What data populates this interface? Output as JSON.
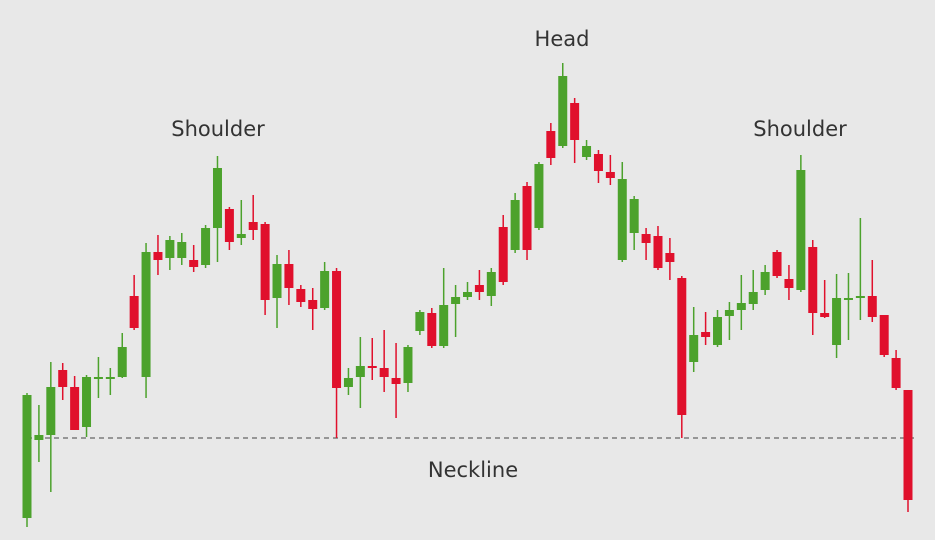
{
  "chart_data": {
    "type": "candlestick",
    "open": [
      22,
      100,
      105,
      170,
      153,
      113,
      161,
      161,
      163,
      244,
      163,
      288,
      282,
      282,
      280,
      275,
      312,
      331,
      302,
      318,
      316,
      242,
      276,
      251,
      240,
      232,
      269,
      153,
      163,
      174,
      172,
      162,
      157,
      209,
      227,
      194,
      236,
      243,
      255,
      244,
      313,
      290,
      354,
      312,
      409,
      394,
      437,
      383,
      386,
      368,
      280,
      307,
      306,
      304,
      287,
      262,
      178,
      208,
      195,
      224,
      230,
      236,
      250,
      288,
      261,
      250,
      293,
      227,
      195,
      240,
      242,
      244,
      225,
      182,
      150
    ],
    "high": [
      147,
      135,
      178,
      177,
      164,
      165,
      183,
      172,
      207,
      265,
      297,
      305,
      304,
      307,
      295,
      315,
      384,
      333,
      340,
      345,
      318,
      285,
      290,
      255,
      252,
      278,
      272,
      172,
      203,
      202,
      210,
      197,
      195,
      230,
      232,
      272,
      255,
      258,
      270,
      272,
      325,
      347,
      358,
      378,
      417,
      477,
      442,
      400,
      390,
      385,
      378,
      344,
      312,
      314,
      302,
      264,
      233,
      228,
      230,
      238,
      265,
      270,
      275,
      290,
      275,
      385,
      300,
      260,
      266,
      267,
      322,
      280,
      225,
      190,
      150
    ],
    "low": [
      13,
      78,
      48,
      140,
      110,
      103,
      142,
      145,
      162,
      210,
      142,
      265,
      270,
      275,
      268,
      272,
      278,
      290,
      295,
      300,
      225,
      212,
      235,
      233,
      210,
      230,
      102,
      145,
      132,
      160,
      148,
      122,
      148,
      205,
      192,
      192,
      203,
      240,
      240,
      234,
      255,
      287,
      280,
      310,
      375,
      392,
      377,
      380,
      357,
      355,
      278,
      290,
      280,
      270,
      260,
      102,
      168,
      195,
      193,
      200,
      210,
      230,
      245,
      262,
      240,
      248,
      205,
      222,
      182,
      200,
      220,
      218,
      183,
      150,
      28
    ],
    "close": [
      145,
      105,
      153,
      153,
      110,
      163,
      163,
      163,
      193,
      212,
      288,
      280,
      300,
      298,
      273,
      312,
      372,
      298,
      306,
      310,
      240,
      276,
      252,
      238,
      231,
      269,
      152,
      162,
      174,
      172,
      163,
      156,
      193,
      228,
      194,
      235,
      243,
      248,
      248,
      268,
      258,
      340,
      290,
      376,
      382,
      464,
      400,
      394,
      369,
      362,
      361,
      341,
      297,
      272,
      278,
      125,
      205,
      203,
      223,
      230,
      237,
      248,
      268,
      264,
      252,
      370,
      227,
      223,
      242,
      242,
      244,
      223,
      185,
      152,
      40
    ],
    "up_color": "#4ca22c",
    "down_color": "#e0102c",
    "ylim": [
      0,
      540
    ],
    "neckline": {
      "value": 102,
      "label": "Neckline"
    },
    "annotations": [
      "Shoulder",
      "Head",
      "Shoulder"
    ]
  }
}
